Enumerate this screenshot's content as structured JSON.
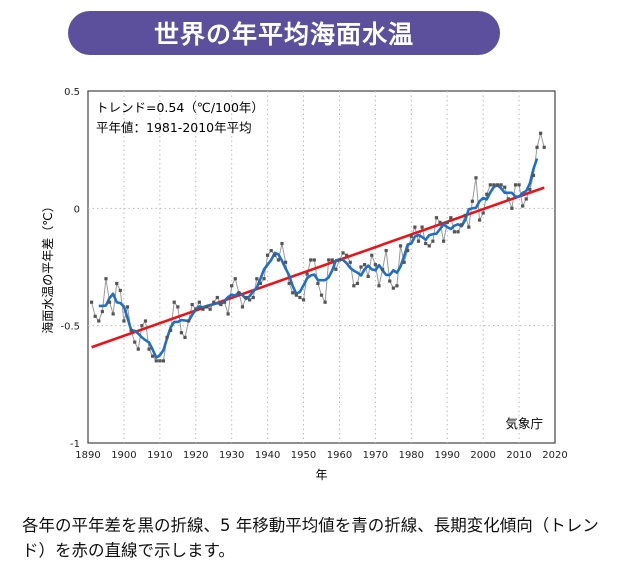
{
  "header": {
    "title": "世界の年平均海面水温"
  },
  "caption": "各年の平年差を黒の折線、5 年移動平均値を青の折線、長期変化傾向（トレンド）を赤の直線で示します。",
  "chart_data": {
    "type": "line",
    "xlabel": "年",
    "ylabel": "海面水温の平年差（℃）",
    "xlim": [
      1890,
      2020
    ],
    "ylim": [
      -1,
      0.5
    ],
    "xticks": [
      1890,
      1900,
      1910,
      1920,
      1930,
      1940,
      1950,
      1960,
      1970,
      1980,
      1990,
      2000,
      2010,
      2020
    ],
    "yticks": [
      {
        "v": 0.5,
        "l": "0.5"
      },
      {
        "v": 0,
        "l": "0"
      },
      {
        "v": -0.5,
        "l": "-0.5"
      },
      {
        "v": -1,
        "l": "-1"
      }
    ],
    "grid": true,
    "annotations": [
      "トレンド=0.54（℃/100年）",
      "平年値：1981-2010年平均"
    ],
    "source": "気象庁",
    "trend_per_century": 0.54,
    "colors": {
      "annual": "#555555",
      "moving_average": "#1f6fc6",
      "trend": "#e8141b"
    },
    "x_start": 1891,
    "annual": [
      -0.4,
      -0.46,
      -0.48,
      -0.44,
      -0.3,
      -0.4,
      -0.45,
      -0.32,
      -0.35,
      -0.48,
      -0.42,
      -0.52,
      -0.57,
      -0.6,
      -0.5,
      -0.48,
      -0.6,
      -0.63,
      -0.65,
      -0.65,
      -0.65,
      -0.55,
      -0.52,
      -0.4,
      -0.42,
      -0.53,
      -0.55,
      -0.48,
      -0.41,
      -0.43,
      -0.4,
      -0.43,
      -0.42,
      -0.43,
      -0.4,
      -0.38,
      -0.41,
      -0.4,
      -0.45,
      -0.33,
      -0.3,
      -0.36,
      -0.42,
      -0.38,
      -0.39,
      -0.38,
      -0.3,
      -0.32,
      -0.3,
      -0.2,
      -0.18,
      -0.2,
      -0.22,
      -0.15,
      -0.23,
      -0.32,
      -0.36,
      -0.37,
      -0.38,
      -0.39,
      -0.28,
      -0.22,
      -0.22,
      -0.32,
      -0.37,
      -0.4,
      -0.22,
      -0.22,
      -0.26,
      -0.22,
      -0.19,
      -0.2,
      -0.23,
      -0.33,
      -0.32,
      -0.25,
      -0.24,
      -0.29,
      -0.2,
      -0.24,
      -0.33,
      -0.26,
      -0.18,
      -0.31,
      -0.34,
      -0.33,
      -0.16,
      -0.23,
      -0.18,
      -0.12,
      -0.08,
      -0.14,
      -0.08,
      -0.15,
      -0.16,
      -0.14,
      -0.04,
      -0.06,
      -0.14,
      -0.06,
      -0.04,
      -0.1,
      -0.1,
      -0.07,
      -0.03,
      -0.08,
      0.03,
      0.13,
      -0.05,
      -0.02,
      0.06,
      0.1,
      0.1,
      0.1,
      0.1,
      0.09,
      0.04,
      0.0,
      0.1,
      0.1,
      0.01,
      0.04,
      0.08,
      0.14,
      0.26,
      0.32,
      0.26
    ]
  }
}
